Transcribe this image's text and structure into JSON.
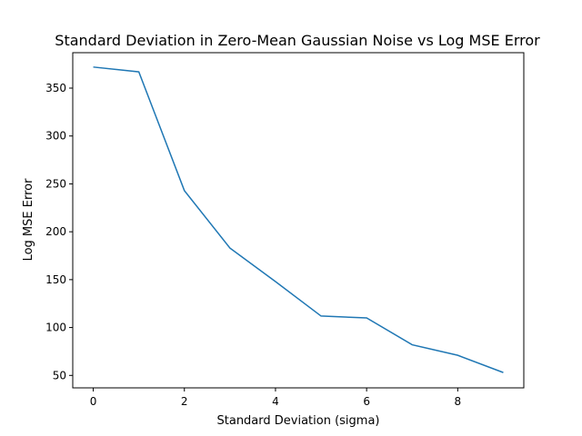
{
  "chart_data": {
    "type": "line",
    "title": "Standard Deviation in Zero-Mean Gaussian Noise vs Log MSE Error",
    "xlabel": "Standard Deviation (sigma)",
    "ylabel": "Log MSE Error",
    "xlim": [
      -0.45,
      9.45
    ],
    "ylim": [
      37,
      387
    ],
    "xticks": [
      0,
      2,
      4,
      6,
      8
    ],
    "yticks": [
      50,
      100,
      150,
      200,
      250,
      300,
      350
    ],
    "grid": false,
    "series": [
      {
        "color": "#1f77b4",
        "x": [
          0,
          1,
          2,
          3,
          4,
          5,
          6,
          7,
          8,
          9
        ],
        "y": [
          372,
          367,
          243,
          183,
          148,
          112,
          110,
          82,
          71,
          53
        ]
      }
    ]
  }
}
